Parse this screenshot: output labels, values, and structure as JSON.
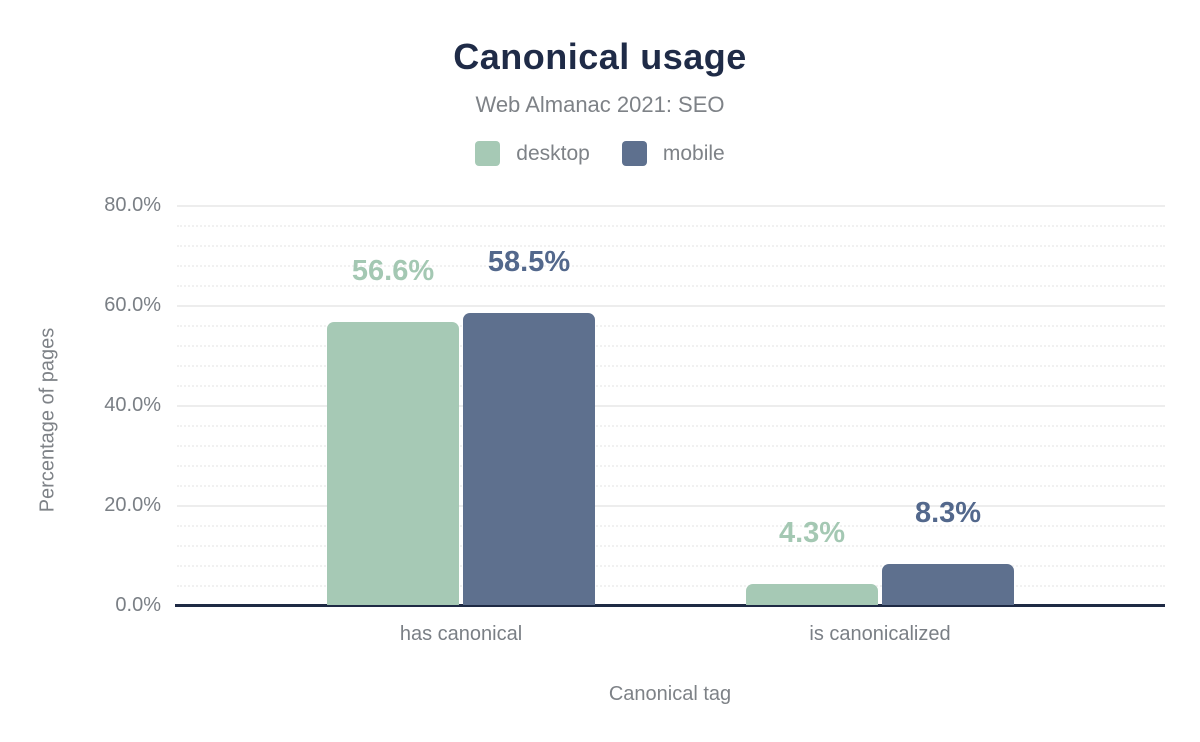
{
  "title": "Canonical usage",
  "subtitle": "Web Almanac 2021: SEO",
  "legend": {
    "items": [
      {
        "label": "desktop",
        "color": "#a6c9b5"
      },
      {
        "label": "mobile",
        "color": "#5e708e"
      }
    ]
  },
  "colors": {
    "title": "#1f2b47",
    "muted_text": "#7e8287",
    "axis_line": "#1e2a44",
    "grid_major": "#ededed",
    "grid_minor": "#f1f1f1",
    "desktop": "#a6c9b5",
    "mobile": "#5e708e",
    "desktop_label": "#a4c8b3",
    "mobile_label": "#53688c"
  },
  "chart_data": {
    "type": "bar",
    "title": "Canonical usage",
    "subtitle": "Web Almanac 2021: SEO",
    "categories": [
      "has canonical",
      "is canonicalized"
    ],
    "series": [
      {
        "name": "desktop",
        "color": "#a6c9b5",
        "label_color": "#a4c8b3",
        "values": [
          56.6,
          4.3
        ],
        "value_labels": [
          "56.6%",
          "4.3%"
        ]
      },
      {
        "name": "mobile",
        "color": "#5e708e",
        "label_color": "#53688c",
        "values": [
          58.5,
          8.3
        ],
        "value_labels": [
          "58.5%",
          "8.3%"
        ]
      }
    ],
    "xlabel": "Canonical tag",
    "ylabel": "Percentage of pages",
    "ylim": [
      0,
      80
    ],
    "yticks": [
      {
        "value": 0,
        "label": "0.0%"
      },
      {
        "value": 20,
        "label": "20.0%"
      },
      {
        "value": 40,
        "label": "40.0%"
      },
      {
        "value": 60,
        "label": "60.0%"
      },
      {
        "value": 80,
        "label": "80.0%"
      }
    ],
    "grid": true,
    "grid_major_step": 20,
    "grid_minor_step": 4,
    "legend_position": "top"
  }
}
